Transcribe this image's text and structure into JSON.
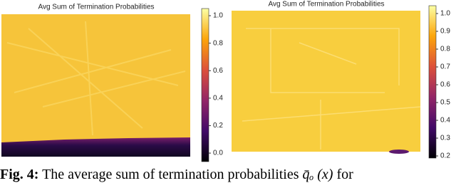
{
  "figures": [
    {
      "title": "Avg Sum of Termination Probabilities",
      "colorbar": {
        "range": [
          -0.062,
          1.052
        ],
        "ticks": [
          {
            "value": 0,
            "label": "0.0"
          },
          {
            "value": 0.2,
            "label": "0.2"
          },
          {
            "value": 0.4,
            "label": "0.4"
          },
          {
            "value": 0.6,
            "label": "0.6"
          },
          {
            "value": 0.8,
            "label": "0.8"
          },
          {
            "value": 1,
            "label": "1.0"
          }
        ]
      }
    },
    {
      "title": "Avg Sum of Termination Probabilities",
      "colorbar": {
        "range": [
          0.188,
          1.044
        ],
        "ticks": [
          {
            "value": 0.2,
            "label": "0.2"
          },
          {
            "value": 0.3,
            "label": "0.3"
          },
          {
            "value": 0.4,
            "label": "0.4"
          },
          {
            "value": 0.5,
            "label": "0.5"
          },
          {
            "value": 0.6,
            "label": "0.6"
          },
          {
            "value": 0.7,
            "label": "0.7"
          },
          {
            "value": 0.8,
            "label": "0.8"
          },
          {
            "value": 0.9,
            "label": "0.9"
          },
          {
            "value": 1,
            "label": "1.0"
          }
        ]
      }
    }
  ],
  "caption": {
    "label": "Fig. 4:",
    "text": "The average sum of termination probabilities",
    "math": "q̄ₒ (x)",
    "tail": "for"
  }
}
